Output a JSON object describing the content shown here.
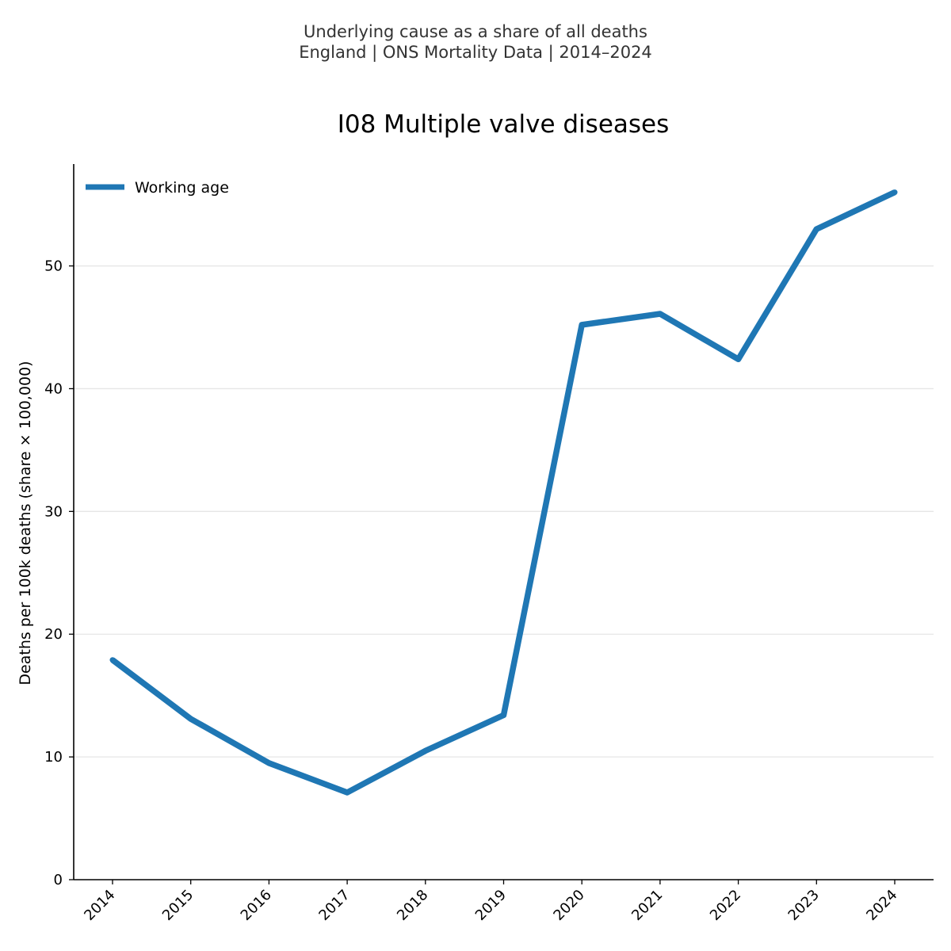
{
  "header": {
    "subtitle_line1": "Underlying cause as a share of all deaths",
    "subtitle_line2": "England | ONS Mortality Data | 2014–2024"
  },
  "chart_data": {
    "type": "line",
    "title": "I08 Multiple valve diseases",
    "xlabel": "",
    "ylabel": "Deaths per 100k deaths (share × 100,000)",
    "categories": [
      "2014",
      "2015",
      "2016",
      "2017",
      "2018",
      "2019",
      "2020",
      "2021",
      "2022",
      "2023",
      "2024"
    ],
    "series": [
      {
        "name": "Working age",
        "color": "#1f77b4",
        "values": [
          17.9,
          13.1,
          9.5,
          7.1,
          10.5,
          13.4,
          45.2,
          46.1,
          42.4,
          53.0,
          56.0
        ]
      }
    ],
    "ylim": [
      0,
      58.3
    ],
    "yticks": [
      0,
      10,
      20,
      30,
      40,
      50
    ],
    "grid": "horizontal",
    "legend_position": "top-left"
  }
}
